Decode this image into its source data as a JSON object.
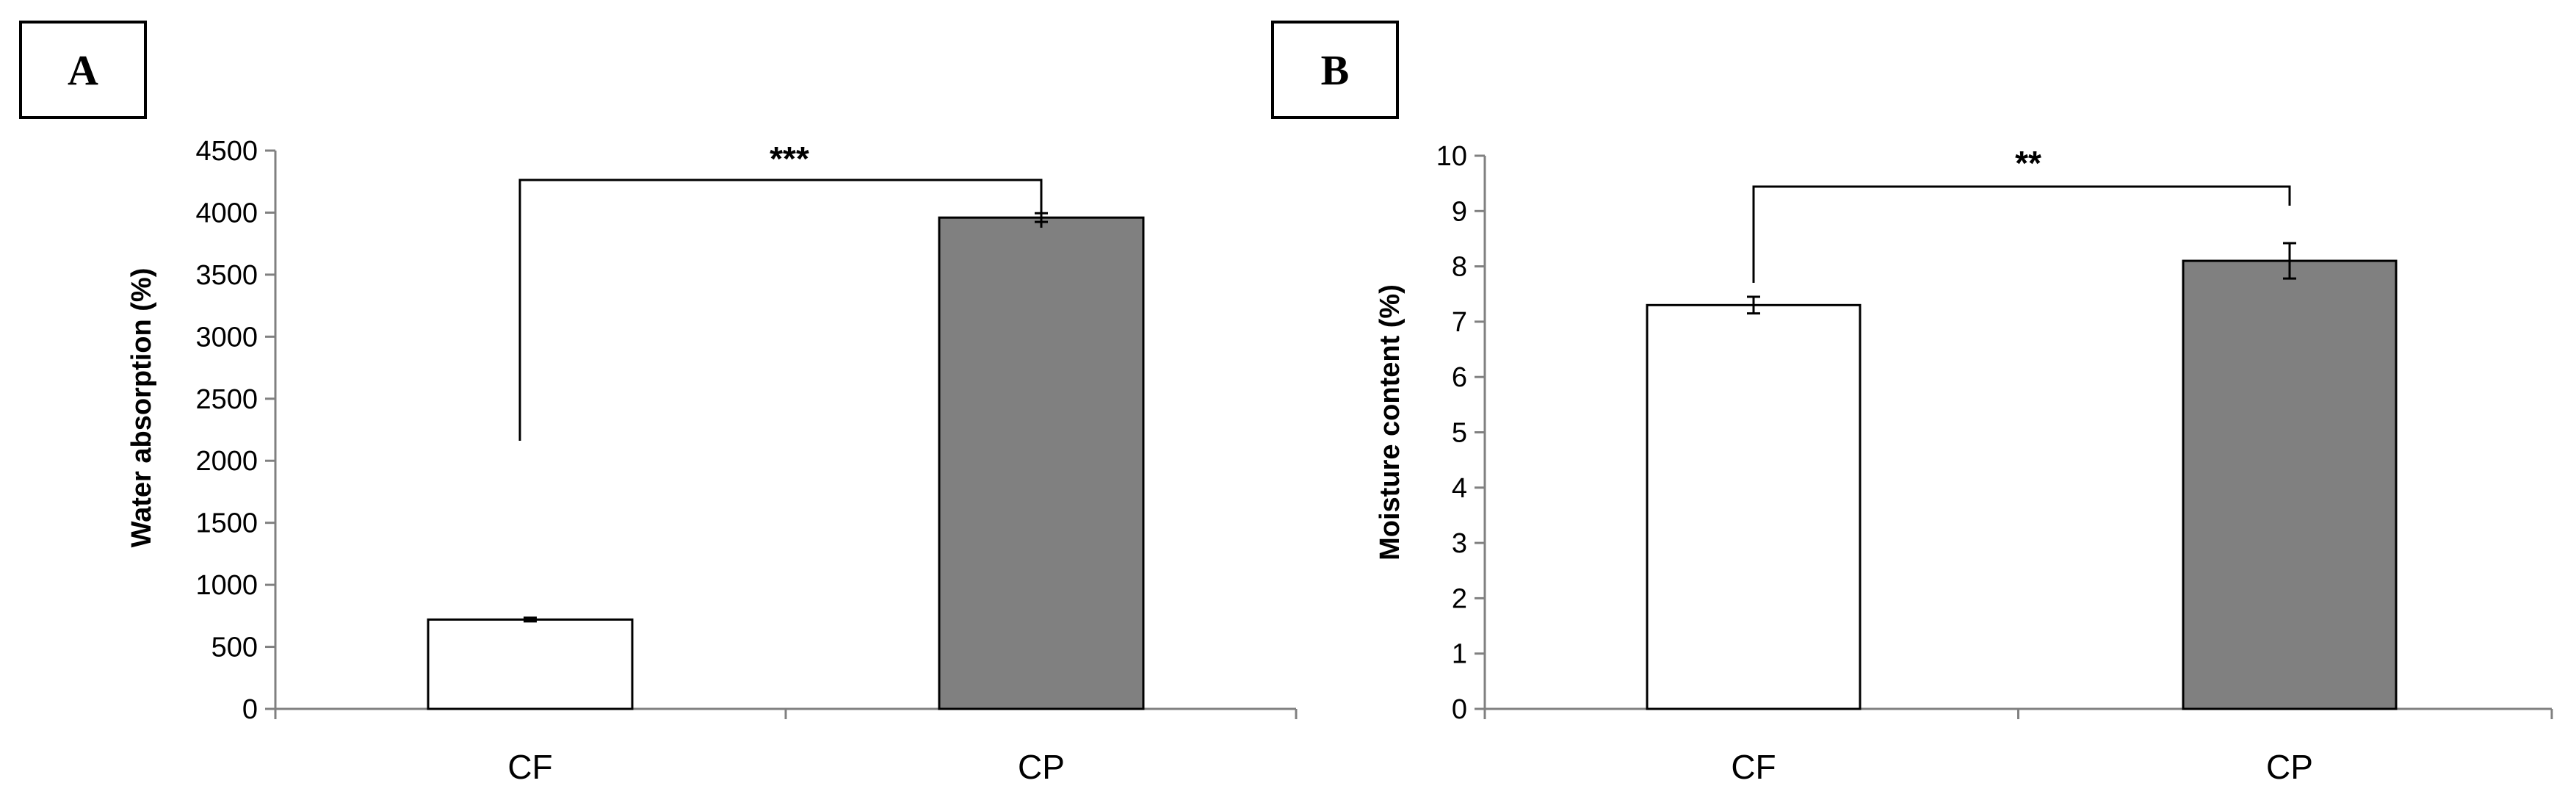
{
  "chart_data": [
    {
      "type": "bar",
      "panel_label": "A",
      "categories": [
        "CF",
        "CP"
      ],
      "values": [
        720,
        3960
      ],
      "error": [
        15,
        35
      ],
      "ylabel": "Water absorption (%)",
      "ylim": [
        0,
        4500
      ],
      "yticks": [
        "0",
        "500",
        "1000",
        "1500",
        "2000",
        "2500",
        "3000",
        "3500",
        "4000",
        "4500"
      ],
      "colors": [
        "#ffffff",
        "#808080"
      ],
      "significance": "***",
      "grid": false
    },
    {
      "type": "bar",
      "panel_label": "B",
      "categories": [
        "CF",
        "CP"
      ],
      "values": [
        7.3,
        8.1
      ],
      "error": [
        0.15,
        0.32
      ],
      "ylabel": "Moisture content (%)",
      "ylim": [
        0,
        10
      ],
      "yticks": [
        "0",
        "1",
        "2",
        "3",
        "4",
        "5",
        "6",
        "7",
        "8",
        "9",
        "10"
      ],
      "colors": [
        "#ffffff",
        "#808080"
      ],
      "significance": "**",
      "grid": false
    }
  ]
}
